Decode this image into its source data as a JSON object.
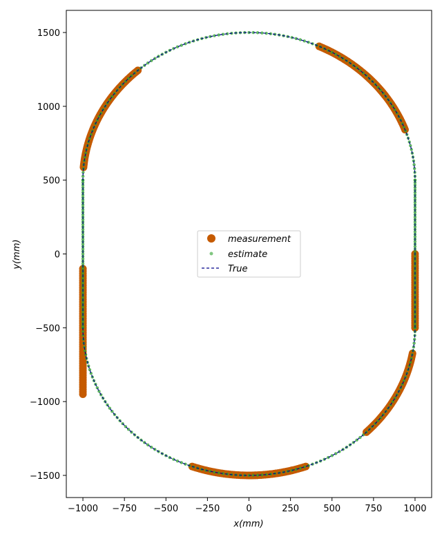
{
  "chart_data": {
    "type": "scatter",
    "title": "",
    "xlabel": "x(mm)",
    "ylabel": "y(mm)",
    "xlim": [
      -1100,
      1100
    ],
    "ylim": [
      -1650,
      1650
    ],
    "xticks": [
      -1000,
      -750,
      -500,
      -250,
      0,
      250,
      500,
      750,
      1000
    ],
    "xtick_labels": [
      "−1000",
      "−750",
      "−500",
      "−250",
      "0",
      "250",
      "500",
      "750",
      "1000"
    ],
    "yticks": [
      -1500,
      -1000,
      -500,
      0,
      500,
      1000,
      1500
    ],
    "ytick_labels": [
      "−1500",
      "−1000",
      "−500",
      "0",
      "500",
      "1000",
      "1500"
    ],
    "grid": false,
    "legend_position": "center",
    "track": {
      "shape": "stadium",
      "straight_x": [
        -1000,
        1000
      ],
      "straight_y": [
        -500,
        500
      ],
      "arc_center_top": [
        0,
        500
      ],
      "arc_center_bottom": [
        0,
        -500
      ],
      "arc_radius_x": 1000,
      "arc_radius_y": 1000
    },
    "series": [
      {
        "name": "measurement",
        "style": "marker",
        "color": "#c55a00",
        "segments": [
          {
            "part": "left",
            "y_range": [
              -950,
              -100
            ]
          },
          {
            "part": "top",
            "angle_deg_range": [
              132,
              175
            ]
          },
          {
            "part": "top",
            "angle_deg_range": [
              35,
              65
            ]
          },
          {
            "part": "top",
            "angle_deg_range": [
              20,
              45
            ]
          },
          {
            "part": "right",
            "y_range": [
              -500,
              0
            ]
          },
          {
            "part": "bottom",
            "angle_deg_range": [
              -45,
              -10
            ]
          },
          {
            "part": "bottom",
            "angle_deg_range": [
              -110,
              -75
            ]
          },
          {
            "part": "bottom",
            "angle_deg_range": [
              -90,
              -70
            ]
          }
        ]
      },
      {
        "name": "estimate",
        "style": "marker",
        "color": "#2ca02c"
      },
      {
        "name": "True",
        "style": "dashed-line",
        "color": "#00008b"
      }
    ]
  }
}
